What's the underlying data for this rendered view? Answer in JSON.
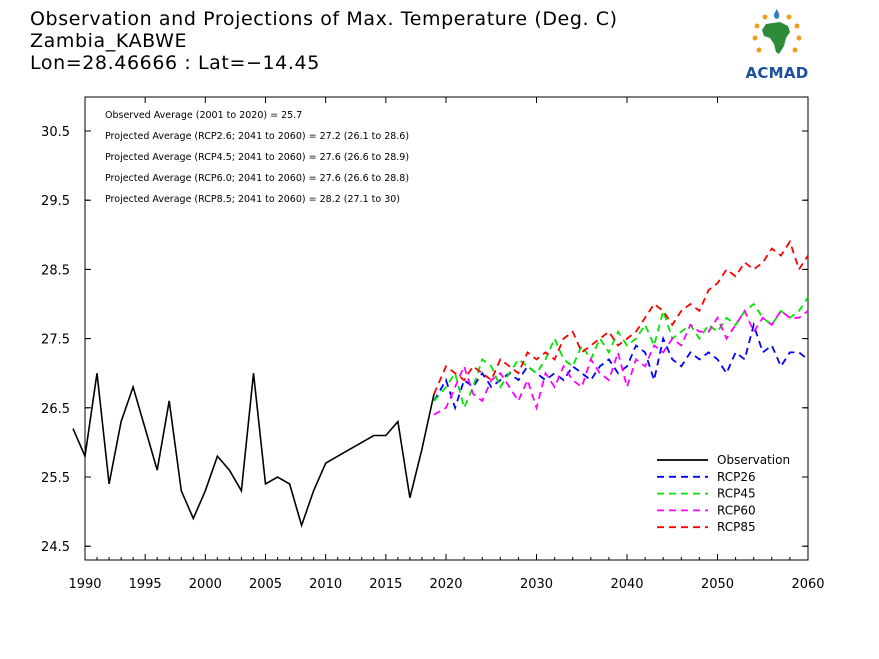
{
  "title": {
    "line1": "Observation and Projections of Max. Temperature (Deg. C)",
    "line2": "Zambia_KABWE",
    "line3": "Lon=28.46666 : Lat=−14.45"
  },
  "logo": {
    "text": "ACMAD",
    "icon": "africa-map-logo-icon"
  },
  "colors": {
    "observation": "#000000",
    "RCP26": "#0000ff",
    "RCP45": "#00e600",
    "RCP60": "#ff00ff",
    "RCP85": "#ff0000"
  },
  "chart_data": {
    "type": "line",
    "xlim": [
      1989,
      2060
    ],
    "ylim": [
      24.4,
      31.0
    ],
    "x_ticks": [
      1990,
      1995,
      2000,
      2005,
      2010,
      2015,
      2020,
      2030,
      2040,
      2050,
      2060
    ],
    "y_ticks": [
      24.5,
      25.5,
      26.5,
      27.5,
      28.5,
      29.5,
      30.5
    ],
    "grid": false,
    "legend_position": "bottom-right",
    "annotations": [
      "Observed Average (2001 to 2020) = 25.7",
      "Projected Average (RCP2.6; 2041 to 2060) = 27.2 (26.1 to 28.6)",
      "Projected Average (RCP4.5; 2041 to 2060) = 27.6 (26.6 to 28.9)",
      "Projected Average (RCP6.0; 2041 to 2060) = 27.6 (26.6 to 28.8)",
      "Projected Average (RCP8.5; 2041 to 2060) = 28.2 (27.1 to 30)"
    ],
    "series": [
      {
        "name": "Observation",
        "style": "solid",
        "color": "#000000",
        "x": [
          1989,
          1990,
          1991,
          1992,
          1993,
          1994,
          1995,
          1996,
          1997,
          1998,
          1999,
          2000,
          2001,
          2002,
          2003,
          2004,
          2005,
          2006,
          2007,
          2008,
          2009,
          2010,
          2011,
          2012,
          2013,
          2014,
          2015,
          2016,
          2017,
          2018,
          2019
        ],
        "y": [
          26.2,
          25.8,
          27.0,
          25.4,
          26.3,
          26.8,
          26.2,
          25.6,
          26.6,
          25.3,
          24.9,
          25.3,
          25.8,
          25.6,
          25.3,
          27.0,
          25.4,
          25.5,
          25.4,
          24.8,
          25.3,
          25.7,
          25.8,
          25.9,
          26.0,
          26.1,
          26.1,
          26.3,
          25.2,
          25.9,
          26.7
        ]
      },
      {
        "name": "RCP26",
        "style": "dashed",
        "color": "#0000ff",
        "x": [
          2019,
          2020,
          2021,
          2022,
          2023,
          2024,
          2025,
          2026,
          2027,
          2028,
          2029,
          2030,
          2031,
          2032,
          2033,
          2034,
          2035,
          2036,
          2037,
          2038,
          2039,
          2040,
          2041,
          2042,
          2043,
          2044,
          2045,
          2046,
          2047,
          2048,
          2049,
          2050,
          2051,
          2052,
          2053,
          2054,
          2055,
          2056,
          2057,
          2058,
          2059,
          2060
        ],
        "y": [
          26.6,
          26.9,
          26.5,
          26.9,
          26.8,
          27.0,
          26.8,
          26.9,
          27.0,
          26.9,
          27.1,
          27.0,
          26.9,
          27.0,
          26.9,
          27.1,
          27.0,
          26.9,
          27.1,
          27.2,
          27.0,
          27.1,
          27.4,
          27.3,
          26.9,
          27.5,
          27.2,
          27.1,
          27.3,
          27.2,
          27.3,
          27.2,
          27.0,
          27.3,
          27.2,
          27.7,
          27.3,
          27.4,
          27.1,
          27.3,
          27.3,
          27.2
        ]
      },
      {
        "name": "RCP45",
        "style": "dashed",
        "color": "#00e600",
        "x": [
          2019,
          2020,
          2021,
          2022,
          2023,
          2024,
          2025,
          2026,
          2027,
          2028,
          2029,
          2030,
          2031,
          2032,
          2033,
          2034,
          2035,
          2036,
          2037,
          2038,
          2039,
          2040,
          2041,
          2042,
          2043,
          2044,
          2045,
          2046,
          2047,
          2048,
          2049,
          2050,
          2051,
          2052,
          2053,
          2054,
          2055,
          2056,
          2057,
          2058,
          2059,
          2060
        ],
        "y": [
          26.6,
          26.8,
          27.0,
          26.5,
          26.8,
          27.2,
          27.1,
          26.8,
          27.0,
          27.2,
          27.1,
          27.0,
          27.2,
          27.5,
          27.2,
          27.1,
          27.4,
          27.2,
          27.5,
          27.3,
          27.6,
          27.4,
          27.5,
          27.7,
          27.4,
          27.9,
          27.5,
          27.6,
          27.7,
          27.5,
          27.7,
          27.6,
          27.8,
          27.7,
          27.9,
          28.0,
          27.8,
          27.7,
          27.9,
          27.8,
          27.9,
          28.1
        ]
      },
      {
        "name": "RCP60",
        "style": "dashed",
        "color": "#ff00ff",
        "x": [
          2019,
          2020,
          2021,
          2022,
          2023,
          2024,
          2025,
          2026,
          2027,
          2028,
          2029,
          2030,
          2031,
          2032,
          2033,
          2034,
          2035,
          2036,
          2037,
          2038,
          2039,
          2040,
          2041,
          2042,
          2043,
          2044,
          2045,
          2046,
          2047,
          2048,
          2049,
          2050,
          2051,
          2052,
          2053,
          2054,
          2055,
          2056,
          2057,
          2058,
          2059,
          2060
        ],
        "y": [
          26.4,
          26.5,
          26.8,
          27.1,
          26.7,
          26.6,
          26.9,
          27.0,
          26.8,
          26.6,
          26.9,
          26.5,
          27.0,
          26.8,
          27.1,
          26.9,
          26.8,
          27.2,
          27.0,
          26.9,
          27.3,
          26.8,
          27.2,
          27.1,
          27.4,
          27.3,
          27.5,
          27.4,
          27.7,
          27.6,
          27.6,
          27.8,
          27.5,
          27.7,
          27.9,
          27.6,
          27.8,
          27.7,
          27.9,
          27.8,
          27.8,
          27.9
        ]
      },
      {
        "name": "RCP85",
        "style": "dashed",
        "color": "#ff0000",
        "x": [
          2019,
          2020,
          2021,
          2022,
          2023,
          2024,
          2025,
          2026,
          2027,
          2028,
          2029,
          2030,
          2031,
          2032,
          2033,
          2034,
          2035,
          2036,
          2037,
          2038,
          2039,
          2040,
          2041,
          2042,
          2043,
          2044,
          2045,
          2046,
          2047,
          2048,
          2049,
          2050,
          2051,
          2052,
          2053,
          2054,
          2055,
          2056,
          2057,
          2058,
          2059,
          2060
        ],
        "y": [
          26.7,
          27.1,
          27.0,
          26.9,
          27.1,
          27.0,
          26.9,
          27.2,
          27.1,
          27.0,
          27.3,
          27.2,
          27.3,
          27.2,
          27.5,
          27.6,
          27.3,
          27.4,
          27.5,
          27.6,
          27.4,
          27.5,
          27.6,
          27.8,
          28.0,
          27.9,
          27.7,
          27.9,
          28.0,
          27.9,
          28.2,
          28.3,
          28.5,
          28.4,
          28.6,
          28.5,
          28.6,
          28.8,
          28.7,
          28.9,
          28.5,
          28.7
        ]
      }
    ]
  }
}
